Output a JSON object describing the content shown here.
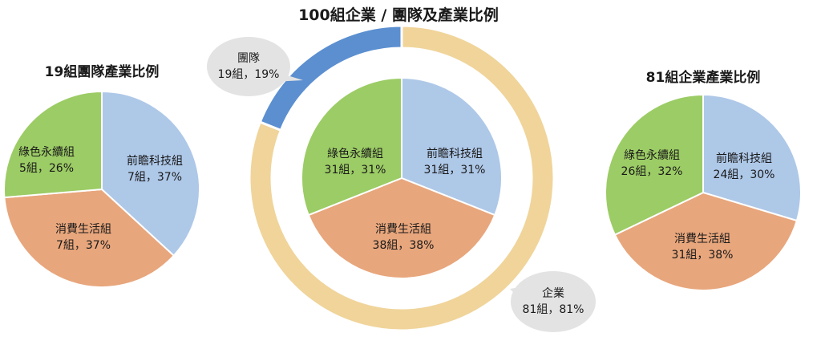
{
  "colors": {
    "tech": "#aec8e8",
    "consumer": "#e8a67c",
    "green": "#9ccc65",
    "team_ring": "#5b8fd0",
    "enterprise_ring": "#f0d49a",
    "callout": "#e3e3e3",
    "slice_border": "#ffffff",
    "text": "#1a1a1a"
  },
  "chart_data": [
    {
      "type": "pie",
      "title": "19組團隊產業比例",
      "slices": [
        {
          "name": "前瞻科技組",
          "value": 7,
          "value_label": "7組，37%",
          "color_key": "tech"
        },
        {
          "name": "消費生活組",
          "value": 7,
          "value_label": "7組，37%",
          "color_key": "consumer"
        },
        {
          "name": "綠色永續組",
          "value": 5,
          "value_label": "5組，26%",
          "color_key": "green"
        }
      ]
    },
    {
      "type": "pie",
      "title": "100組企業 / 團隊及產業比例",
      "slices": [
        {
          "name": "前瞻科技組",
          "value": 31,
          "value_label": "31組，31%",
          "color_key": "tech"
        },
        {
          "name": "消費生活組",
          "value": 38,
          "value_label": "38組，38%",
          "color_key": "consumer"
        },
        {
          "name": "綠色永續組",
          "value": 31,
          "value_label": "31組，31%",
          "color_key": "green"
        }
      ],
      "outer_ring": [
        {
          "name": "企業",
          "value": 81,
          "value_label": "81組，81%",
          "color_key": "enterprise_ring"
        },
        {
          "name": "團隊",
          "value": 19,
          "value_label": "19組，19%",
          "color_key": "team_ring"
        }
      ]
    },
    {
      "type": "pie",
      "title": "81組企業產業比例",
      "slices": [
        {
          "name": "前瞻科技組",
          "value": 24,
          "value_label": "24組，30%",
          "color_key": "tech"
        },
        {
          "name": "消費生活組",
          "value": 31,
          "value_label": "31組，38%",
          "color_key": "consumer"
        },
        {
          "name": "綠色永續組",
          "value": 26,
          "value_label": "26組，32%",
          "color_key": "green"
        }
      ]
    }
  ]
}
